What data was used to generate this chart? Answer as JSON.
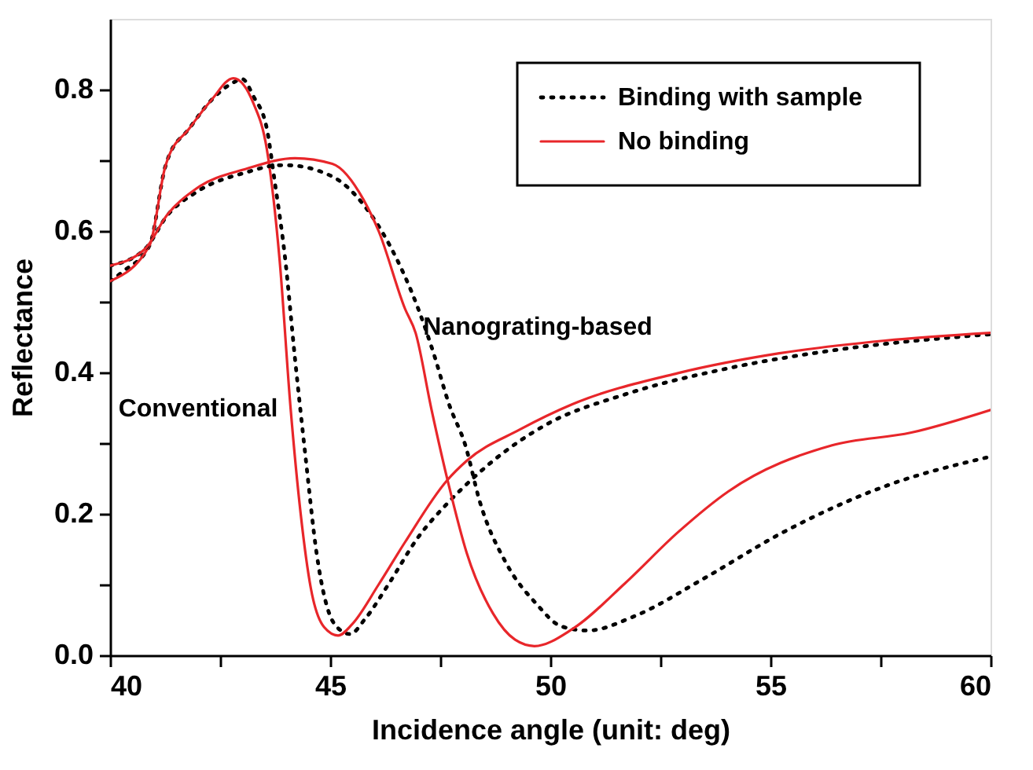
{
  "chart_data": {
    "type": "line",
    "xlabel": "Incidence angle (unit: deg)",
    "ylabel": "Reflectance",
    "xlim": [
      40,
      60
    ],
    "ylim": [
      0,
      0.9
    ],
    "xticks": [
      40,
      {
        "value": 42.5,
        "label": null
      },
      45,
      {
        "value": 47.5,
        "label": null
      },
      50,
      {
        "value": 52.5,
        "label": null
      },
      55,
      {
        "value": 57.5,
        "label": null
      },
      60
    ],
    "yticks": [
      {
        "value": 0,
        "label": "0.0"
      },
      {
        "value": 0.1,
        "label": null
      },
      0.2,
      {
        "value": 0.3,
        "label": null
      },
      0.4,
      {
        "value": 0.5,
        "label": null
      },
      0.6,
      {
        "value": 0.7,
        "label": null
      },
      0.8
    ],
    "grid": false,
    "legend": "top right",
    "marker": "none",
    "annotations": [
      "Conventional",
      "Nanograting-based"
    ],
    "series": [
      {
        "name": "Binding with sample",
        "color": "#000000",
        "line_style": "dotted",
        "x": [
          40,
          40.3,
          40.9,
          41.25,
          41.3,
          41.8,
          42.3,
          42.8,
          43.0,
          43.26,
          43.56,
          43.74,
          43.97,
          44.2,
          44.45,
          44.69,
          45.1,
          45.45,
          45.8,
          46.3,
          47.0,
          47.65,
          48.0,
          48.7,
          49.9,
          51.7,
          54.05,
          56.4,
          60
        ],
        "values": [
          0.529,
          0.543,
          0.58,
          0.69,
          0.7,
          0.745,
          0.785,
          0.81,
          0.815,
          0.79,
          0.745,
          0.67,
          0.565,
          0.42,
          0.275,
          0.145,
          0.044,
          0.03,
          0.052,
          0.098,
          0.167,
          0.214,
          0.236,
          0.275,
          0.326,
          0.369,
          0.406,
          0.431,
          0.454
        ]
      },
      {
        "name": "No binding",
        "color": "#e8262a",
        "line_style": "solid",
        "x": [
          40,
          40.9,
          41.25,
          41.3,
          41.8,
          42.3,
          42.8,
          43.26,
          43.56,
          43.85,
          44.1,
          44.33,
          44.56,
          44.86,
          45.18,
          45.5,
          46.1,
          46.7,
          47.65,
          48.1,
          49.3,
          50.5,
          52.9,
          55.2,
          57.6,
          60
        ],
        "values": [
          0.529,
          0.58,
          0.69,
          0.7,
          0.745,
          0.785,
          0.816,
          0.78,
          0.716,
          0.56,
          0.35,
          0.2,
          0.095,
          0.04,
          0.028,
          0.044,
          0.1,
          0.16,
          0.247,
          0.275,
          0.319,
          0.355,
          0.399,
          0.427,
          0.445,
          0.456
        ]
      },
      {
        "color": "#000000",
        "line_style": "dotted",
        "x": [
          40,
          40.8,
          41.3,
          41.96,
          43.1,
          43.85,
          44.0,
          45.05,
          45.76,
          46.35,
          47.0,
          47.35,
          47.7,
          48.07,
          48.4,
          49.0,
          49.68,
          50.25,
          50.85,
          51.9,
          53.5,
          55.2,
          57.6,
          60
        ],
        "values": [
          0.551,
          0.575,
          0.622,
          0.655,
          0.683,
          0.693,
          0.693,
          0.677,
          0.637,
          0.58,
          0.49,
          0.427,
          0.355,
          0.297,
          0.217,
          0.13,
          0.073,
          0.041,
          0.035,
          0.055,
          0.109,
          0.171,
          0.239,
          0.281
        ]
      },
      {
        "color": "#e8262a",
        "line_style": "solid",
        "x": [
          40,
          40.8,
          41.3,
          41.96,
          43.1,
          44.2,
          45.05,
          45.76,
          46.1,
          46.7,
          46.94,
          47.3,
          47.7,
          48.1,
          48.7,
          49.2,
          49.64,
          50.5,
          51.7,
          52.9,
          54.05,
          56.4,
          58.2,
          60
        ],
        "values": [
          0.551,
          0.575,
          0.623,
          0.66,
          0.688,
          0.703,
          0.695,
          0.644,
          0.6,
          0.49,
          0.456,
          0.348,
          0.239,
          0.145,
          0.059,
          0.022,
          0.013,
          0.037,
          0.102,
          0.174,
          0.232,
          0.297,
          0.315,
          0.347
        ]
      }
    ]
  }
}
